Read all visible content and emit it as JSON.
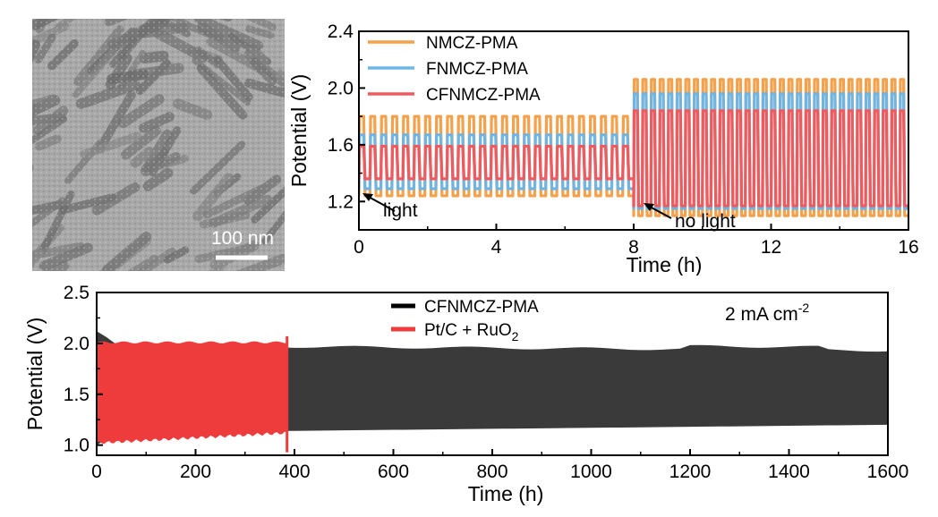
{
  "tem_image": {
    "scale_label": "100 nm"
  },
  "chart_data": [
    {
      "type": "line",
      "xlabel": "Time (h)",
      "ylabel": "Potential (V)",
      "xlim": [
        0,
        16
      ],
      "ylim": [
        1.0,
        2.4
      ],
      "xticks": [
        "0",
        "4",
        "8",
        "12",
        "16"
      ],
      "yticks": [
        "1.2",
        "1.6",
        "2.0",
        "2.4"
      ],
      "series": [
        {
          "name": "NMCZ-PMA",
          "color": "#f5a04a",
          "light": {
            "charge": 1.8,
            "discharge": 1.24
          },
          "dark": {
            "charge": 2.06,
            "discharge": 1.1
          }
        },
        {
          "name": "FNMCZ-PMA",
          "color": "#6fb5e3",
          "light": {
            "charge": 1.67,
            "discharge": 1.29
          },
          "dark": {
            "charge": 1.96,
            "discharge": 1.15
          }
        },
        {
          "name": "CFNMCZ-PMA",
          "color": "#ef5a5f",
          "light": {
            "charge": 1.59,
            "discharge": 1.36
          },
          "dark": {
            "charge": 1.84,
            "discharge": 1.17
          }
        }
      ],
      "cycles": {
        "light_period_h": 8,
        "light_cycles": 25,
        "dark_cycles": 32
      },
      "annotations": [
        "light",
        "no light"
      ]
    },
    {
      "type": "area",
      "xlabel": "Time (h)",
      "ylabel": "Potential (V)",
      "xlim": [
        0,
        1600
      ],
      "ylim": [
        0.9,
        2.5
      ],
      "xticks": [
        "0",
        "200",
        "400",
        "600",
        "800",
        "1000",
        "1200",
        "1400",
        "1600"
      ],
      "yticks": [
        "1.0",
        "1.5",
        "2.0",
        "2.5"
      ],
      "series": [
        {
          "name": "CFNMCZ-PMA",
          "color": "#3a3a3a",
          "start_h": 0,
          "end_h": 1600,
          "charge_start": 1.98,
          "charge_end": 1.93,
          "discharge_start": 1.12,
          "discharge_end": 1.2
        },
        {
          "name": "Pt/C + RuO",
          "name_subscript": "2",
          "color": "#ee3b3b",
          "start_h": 0,
          "end_h": 385,
          "charge": 2.01,
          "discharge_start": 1.02,
          "discharge_end": 1.12
        }
      ],
      "annotation": {
        "text": "2 mA cm",
        "superscript": "-2"
      }
    }
  ]
}
